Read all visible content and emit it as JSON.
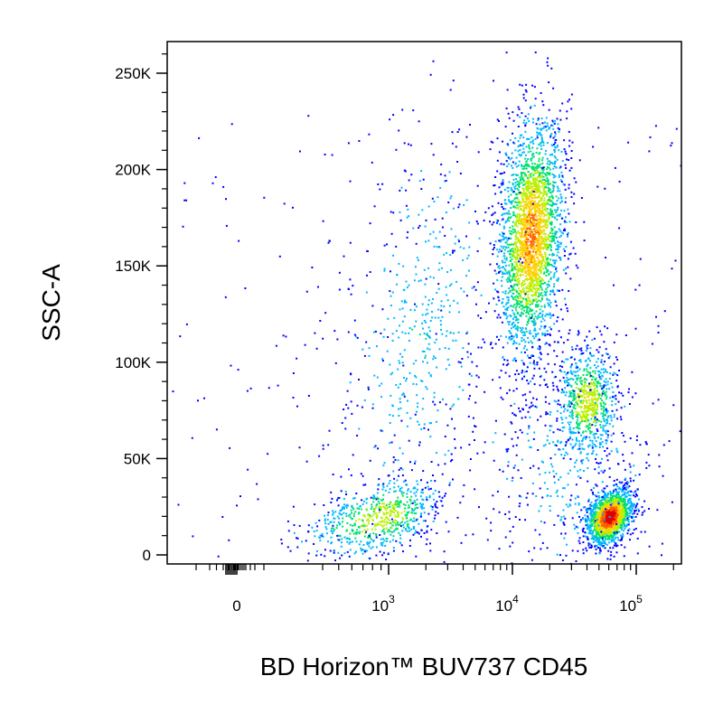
{
  "chart_data": {
    "type": "scatter",
    "subtype": "flow-cytometry-pseudocolor-dot-plot",
    "xlabel": "BD Horizon™ BUV737 CD45",
    "ylabel": "SSC-A",
    "x_scale": "biexponential",
    "y_scale": "linear",
    "xlim": [
      -300,
      200000
    ],
    "ylim": [
      -5000,
      262144
    ],
    "x_ticks": [
      {
        "value": 0,
        "label": "0"
      },
      {
        "value": 1000,
        "base": "10",
        "exp": "3"
      },
      {
        "value": 10000,
        "base": "10",
        "exp": "4"
      },
      {
        "value": 100000,
        "base": "10",
        "exp": "5"
      }
    ],
    "y_ticks": [
      {
        "value": 0,
        "label": "0"
      },
      {
        "value": 50000,
        "label": "50K"
      },
      {
        "value": 100000,
        "label": "100K"
      },
      {
        "value": 150000,
        "label": "150K"
      },
      {
        "value": 200000,
        "label": "200K"
      },
      {
        "value": 250000,
        "label": "250K"
      }
    ],
    "colormap": [
      "#0000ff",
      "#00b8ff",
      "#00e070",
      "#b8f000",
      "#ffd000",
      "#ff6000",
      "#e00000"
    ],
    "populations": [
      {
        "cx": 14000,
        "cy": 165000,
        "sx_decades": 0.13,
        "sy": 30000,
        "count": 2600,
        "peak": 0.75,
        "rot": 0.2
      },
      {
        "cx": 60000,
        "cy": 20000,
        "sx_decades": 0.09,
        "sy": 6500,
        "count": 1600,
        "peak": 1.0,
        "rot": 0.35
      },
      {
        "cx": 40000,
        "cy": 80000,
        "sx_decades": 0.12,
        "sy": 14000,
        "count": 700,
        "peak": 0.55,
        "rot": 0.0
      },
      {
        "cx": 900,
        "cy": 20000,
        "sx_decades": 0.22,
        "sy": 9000,
        "count": 650,
        "peak": 0.5,
        "rot": 0.5
      },
      {
        "cx": 1800,
        "cy": 115000,
        "sx_decades": 0.3,
        "sy": 50000,
        "count": 500,
        "peak": 0.2,
        "rot": 0.3
      },
      {
        "cx": 30000,
        "cy": 45000,
        "sx_decades": 0.35,
        "sy": 30000,
        "count": 450,
        "peak": 0.15,
        "rot": 0.0
      }
    ]
  }
}
